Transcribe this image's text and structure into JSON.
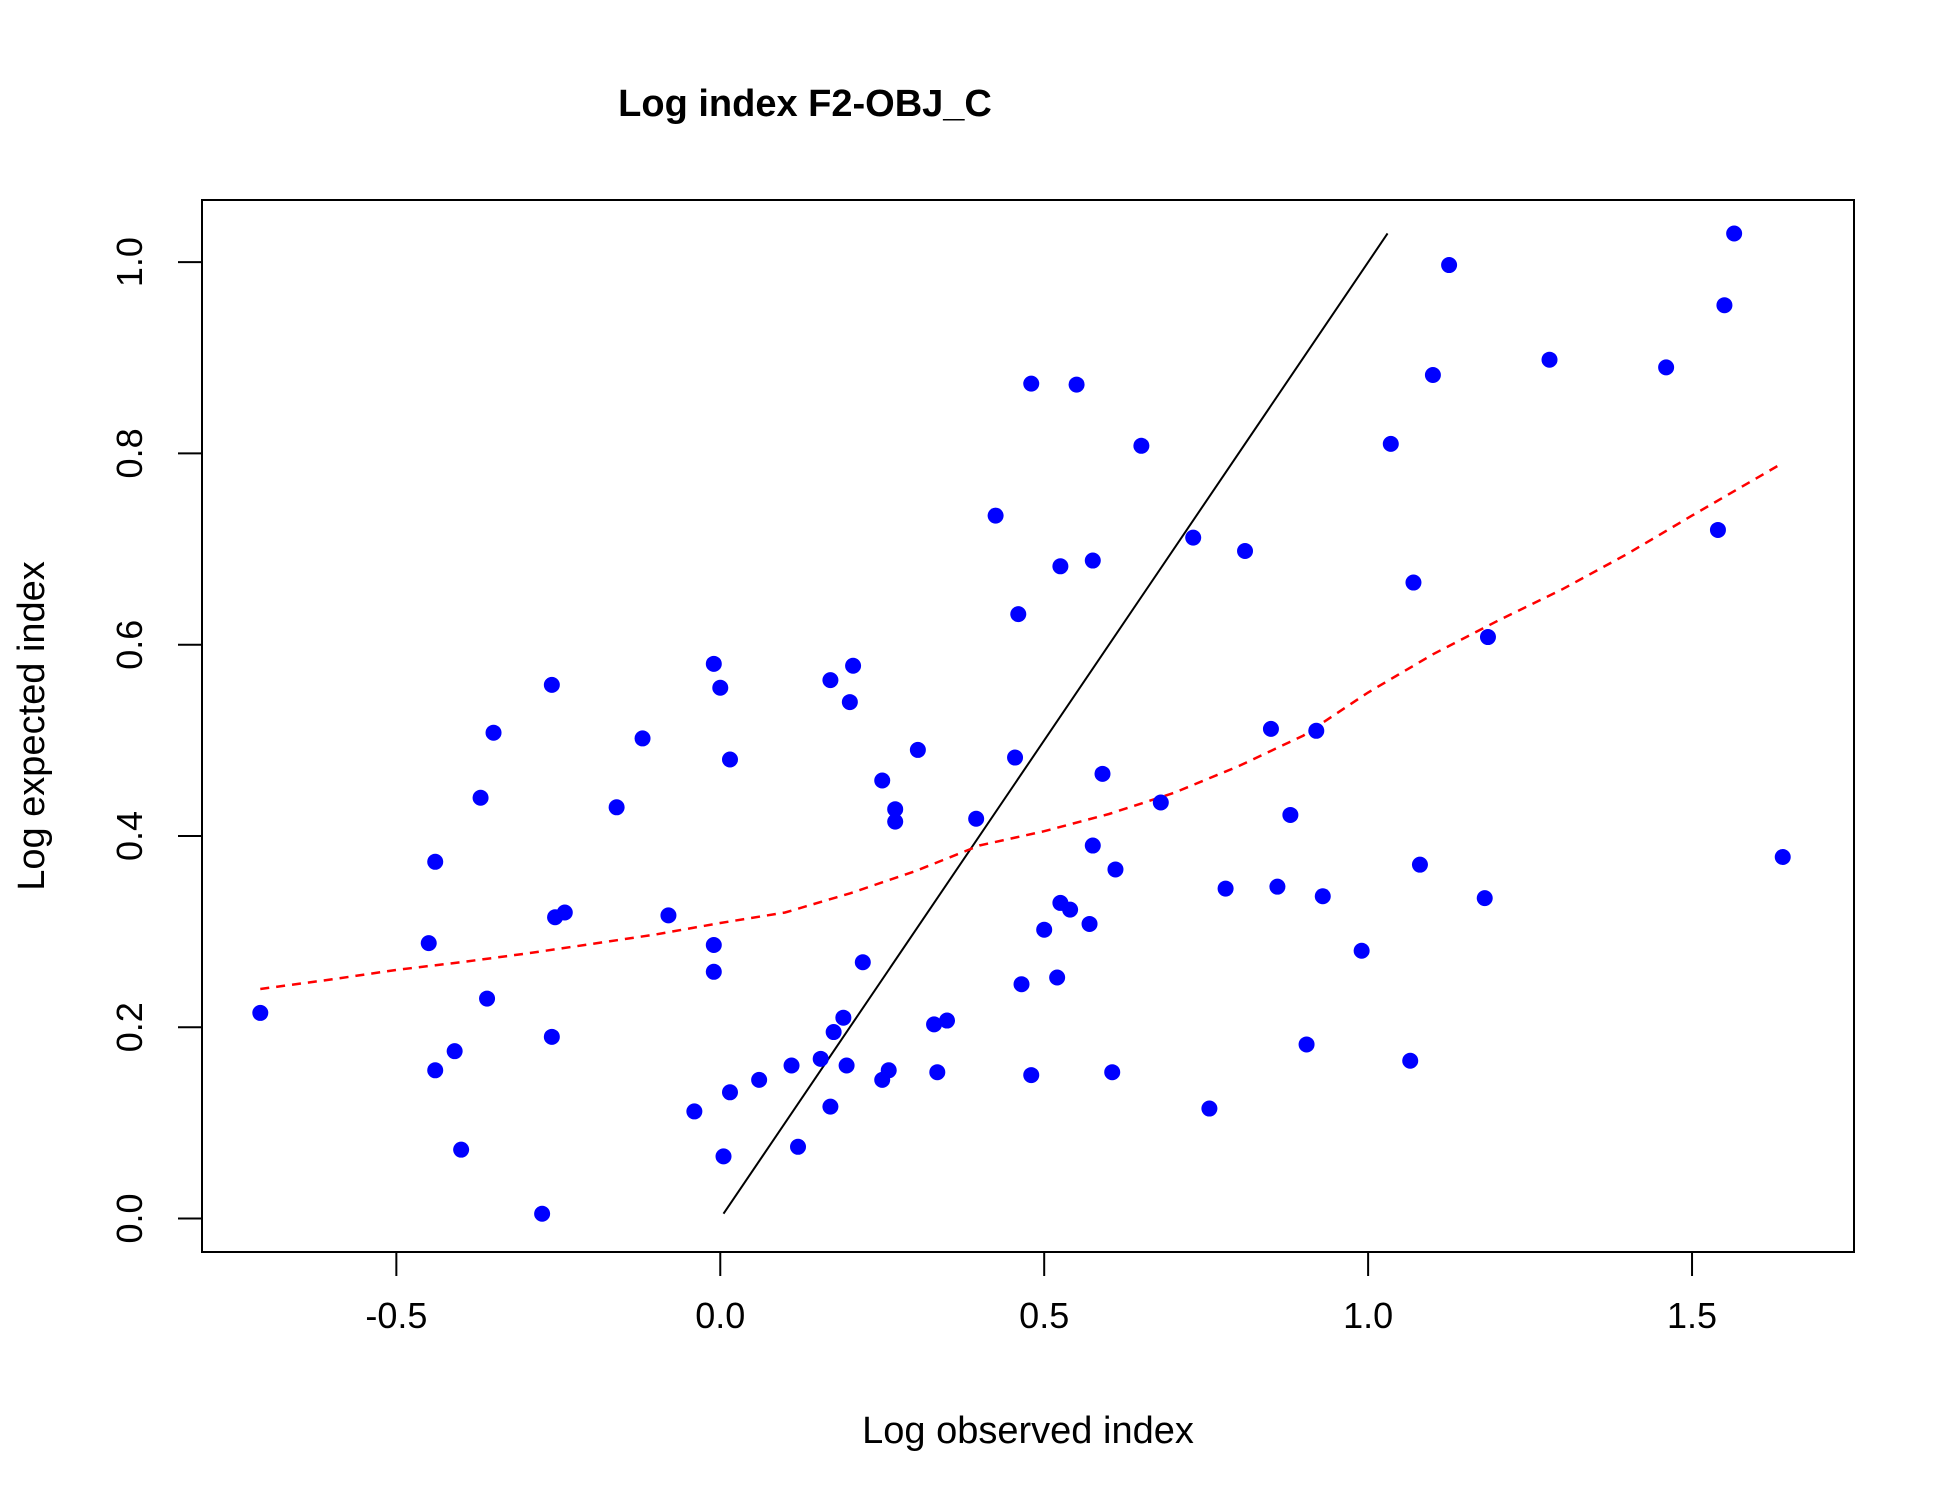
{
  "chart_data": {
    "type": "scatter",
    "title": "Log index F2-OBJ_C",
    "xlabel": "Log observed index",
    "ylabel": "Log expected index",
    "xlim": [
      -0.8,
      1.75
    ],
    "ylim": [
      -0.035,
      1.065
    ],
    "xticks": [
      -0.5,
      0.0,
      0.5,
      1.0,
      1.5
    ],
    "xtick_labels": [
      "-0.5",
      "0.0",
      "0.5",
      "1.0",
      "1.5"
    ],
    "yticks": [
      0.0,
      0.2,
      0.4,
      0.6,
      0.8,
      1.0
    ],
    "ytick_labels": [
      "0.0",
      "0.2",
      "0.4",
      "0.6",
      "0.8",
      "1.0"
    ],
    "grid": false,
    "colors": {
      "points": "#0000ff",
      "trend": "#ff0000",
      "identity": "#000000"
    },
    "points": [
      [
        -0.71,
        0.215
      ],
      [
        -0.45,
        0.288
      ],
      [
        -0.44,
        0.373
      ],
      [
        -0.44,
        0.155
      ],
      [
        -0.41,
        0.175
      ],
      [
        -0.4,
        0.072
      ],
      [
        -0.37,
        0.44
      ],
      [
        -0.36,
        0.23
      ],
      [
        -0.35,
        0.508
      ],
      [
        -0.275,
        0.005
      ],
      [
        -0.26,
        0.558
      ],
      [
        -0.26,
        0.19
      ],
      [
        -0.255,
        0.315
      ],
      [
        -0.24,
        0.32
      ],
      [
        -0.16,
        0.43
      ],
      [
        -0.12,
        0.502
      ],
      [
        -0.08,
        0.317
      ],
      [
        -0.04,
        0.112
      ],
      [
        -0.01,
        0.58
      ],
      [
        -0.01,
        0.286
      ],
      [
        -0.01,
        0.258
      ],
      [
        0.0,
        0.555
      ],
      [
        0.005,
        0.065
      ],
      [
        0.015,
        0.48
      ],
      [
        0.015,
        0.132
      ],
      [
        0.06,
        0.145
      ],
      [
        0.11,
        0.16
      ],
      [
        0.12,
        0.075
      ],
      [
        0.155,
        0.167
      ],
      [
        0.17,
        0.563
      ],
      [
        0.17,
        0.117
      ],
      [
        0.175,
        0.195
      ],
      [
        0.19,
        0.21
      ],
      [
        0.195,
        0.16
      ],
      [
        0.2,
        0.54
      ],
      [
        0.205,
        0.578
      ],
      [
        0.22,
        0.268
      ],
      [
        0.25,
        0.145
      ],
      [
        0.25,
        0.458
      ],
      [
        0.26,
        0.155
      ],
      [
        0.27,
        0.415
      ],
      [
        0.27,
        0.428
      ],
      [
        0.305,
        0.49
      ],
      [
        0.33,
        0.203
      ],
      [
        0.335,
        0.153
      ],
      [
        0.35,
        0.207
      ],
      [
        0.395,
        0.418
      ],
      [
        0.425,
        0.735
      ],
      [
        0.455,
        0.482
      ],
      [
        0.46,
        0.632
      ],
      [
        0.465,
        0.245
      ],
      [
        0.48,
        0.873
      ],
      [
        0.48,
        0.15
      ],
      [
        0.5,
        0.302
      ],
      [
        0.52,
        0.252
      ],
      [
        0.525,
        0.682
      ],
      [
        0.525,
        0.33
      ],
      [
        0.54,
        0.323
      ],
      [
        0.55,
        0.872
      ],
      [
        0.57,
        0.308
      ],
      [
        0.575,
        0.688
      ],
      [
        0.575,
        0.39
      ],
      [
        0.59,
        0.465
      ],
      [
        0.605,
        0.153
      ],
      [
        0.61,
        0.365
      ],
      [
        0.65,
        0.808
      ],
      [
        0.68,
        0.435
      ],
      [
        0.73,
        0.712
      ],
      [
        0.755,
        0.115
      ],
      [
        0.78,
        0.345
      ],
      [
        0.81,
        0.698
      ],
      [
        0.85,
        0.512
      ],
      [
        0.86,
        0.347
      ],
      [
        0.88,
        0.422
      ],
      [
        0.905,
        0.182
      ],
      [
        0.92,
        0.51
      ],
      [
        0.93,
        0.337
      ],
      [
        0.99,
        0.28
      ],
      [
        1.035,
        0.81
      ],
      [
        1.065,
        0.165
      ],
      [
        1.07,
        0.665
      ],
      [
        1.08,
        0.37
      ],
      [
        1.1,
        0.882
      ],
      [
        1.125,
        0.997
      ],
      [
        1.18,
        0.335
      ],
      [
        1.185,
        0.608
      ],
      [
        1.28,
        0.898
      ],
      [
        1.46,
        0.89
      ],
      [
        1.54,
        0.72
      ],
      [
        1.55,
        0.955
      ],
      [
        1.565,
        1.03
      ],
      [
        1.64,
        0.378
      ]
    ],
    "identity_line": {
      "x": [
        0.005,
        1.03
      ],
      "y": [
        0.005,
        1.03
      ]
    },
    "trend_line": {
      "x": [
        -0.71,
        -0.6,
        -0.5,
        -0.4,
        -0.3,
        -0.2,
        -0.1,
        0.0,
        0.1,
        0.2,
        0.3,
        0.4,
        0.5,
        0.6,
        0.7,
        0.8,
        0.9,
        1.0,
        1.1,
        1.2,
        1.3,
        1.4,
        1.5,
        1.64
      ],
      "y": [
        0.24,
        0.25,
        0.26,
        0.268,
        0.277,
        0.287,
        0.297,
        0.309,
        0.32,
        0.34,
        0.363,
        0.39,
        0.405,
        0.423,
        0.445,
        0.473,
        0.505,
        0.55,
        0.59,
        0.625,
        0.658,
        0.695,
        0.735,
        0.79
      ]
    }
  }
}
